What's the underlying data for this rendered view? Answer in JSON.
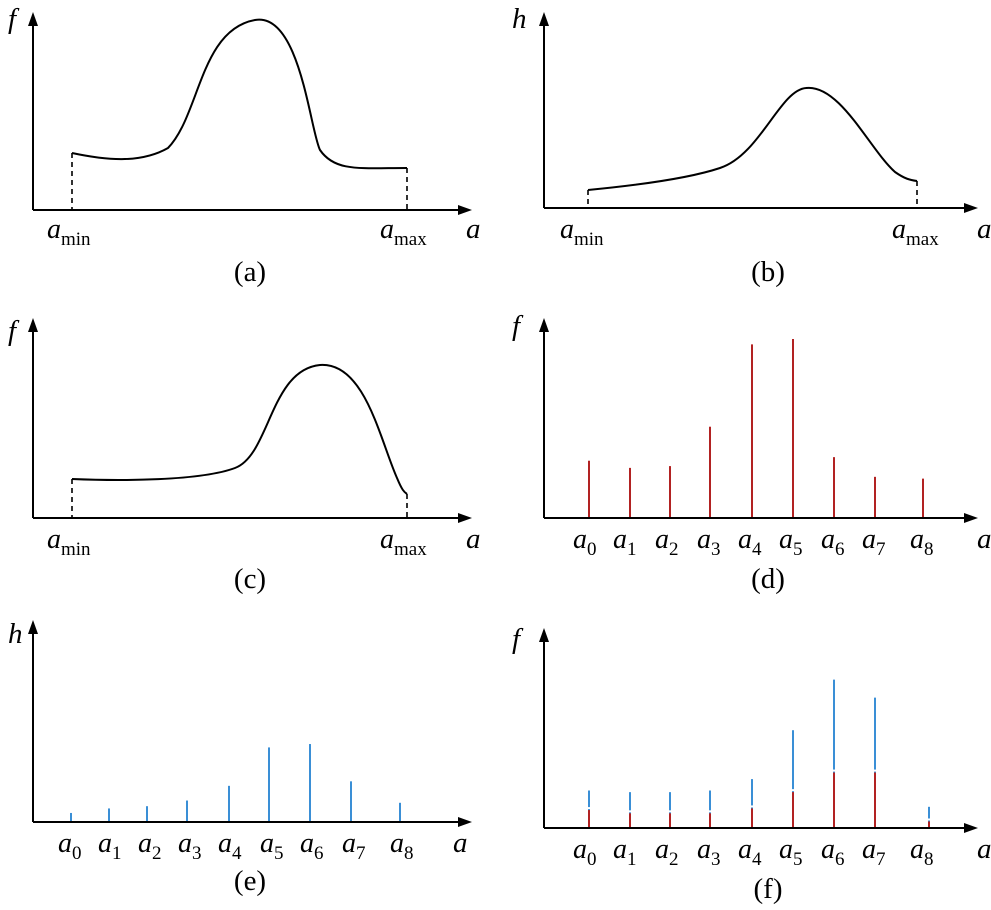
{
  "panels": [
    {
      "id": "a",
      "caption": "(a)",
      "kind": "curve",
      "y_label": "f",
      "x_label": "a",
      "x_ticks": [
        {
          "base": "a",
          "sub": "min"
        },
        {
          "base": "a",
          "sub": "max"
        }
      ]
    },
    {
      "id": "b",
      "caption": "(b)",
      "kind": "curve",
      "y_label": "h",
      "x_label": "a",
      "x_ticks": [
        {
          "base": "a",
          "sub": "min"
        },
        {
          "base": "a",
          "sub": "max"
        }
      ]
    },
    {
      "id": "c",
      "caption": "(c)",
      "kind": "curve",
      "y_label": "f",
      "x_label": "a",
      "x_ticks": [
        {
          "base": "a",
          "sub": "min"
        },
        {
          "base": "a",
          "sub": "max"
        }
      ]
    },
    {
      "id": "d",
      "caption": "(d)",
      "kind": "stems",
      "y_label": "f",
      "x_label": "a",
      "x_ticks": [
        {
          "base": "a",
          "sub": "0"
        },
        {
          "base": "a",
          "sub": "1"
        },
        {
          "base": "a",
          "sub": "2"
        },
        {
          "base": "a",
          "sub": "3"
        },
        {
          "base": "a",
          "sub": "4"
        },
        {
          "base": "a",
          "sub": "5"
        },
        {
          "base": "a",
          "sub": "6"
        },
        {
          "base": "a",
          "sub": "7"
        },
        {
          "base": "a",
          "sub": "8"
        }
      ]
    },
    {
      "id": "e",
      "caption": "(e)",
      "kind": "stems",
      "y_label": "h",
      "x_label": "a",
      "x_ticks": [
        {
          "base": "a",
          "sub": "0"
        },
        {
          "base": "a",
          "sub": "1"
        },
        {
          "base": "a",
          "sub": "2"
        },
        {
          "base": "a",
          "sub": "3"
        },
        {
          "base": "a",
          "sub": "4"
        },
        {
          "base": "a",
          "sub": "5"
        },
        {
          "base": "a",
          "sub": "6"
        },
        {
          "base": "a",
          "sub": "7"
        },
        {
          "base": "a",
          "sub": "8"
        }
      ]
    },
    {
      "id": "f",
      "caption": "(f)",
      "kind": "stems",
      "y_label": "f",
      "x_label": "a",
      "x_ticks": [
        {
          "base": "a",
          "sub": "0"
        },
        {
          "base": "a",
          "sub": "1"
        },
        {
          "base": "a",
          "sub": "2"
        },
        {
          "base": "a",
          "sub": "3"
        },
        {
          "base": "a",
          "sub": "4"
        },
        {
          "base": "a",
          "sub": "5"
        },
        {
          "base": "a",
          "sub": "6"
        },
        {
          "base": "a",
          "sub": "7"
        },
        {
          "base": "a",
          "sub": "8"
        }
      ]
    }
  ],
  "stem_values": {
    "d": {
      "color": "#b22222",
      "values": [
        0.32,
        0.28,
        0.29,
        0.51,
        0.97,
        1.0,
        0.34,
        0.23,
        0.22
      ]
    },
    "e": {
      "color": "#3a8fd6",
      "values": [
        0.08,
        0.12,
        0.14,
        0.19,
        0.32,
        0.66,
        0.69,
        0.36,
        0.17
      ]
    },
    "f": {
      "colors": {
        "red": "#b22222",
        "blue": "#3a8fd6"
      },
      "red_values": [
        0.11,
        0.09,
        0.09,
        0.09,
        0.12,
        0.22,
        0.34,
        0.34,
        0.04
      ],
      "blue_values": [
        0.23,
        0.22,
        0.22,
        0.23,
        0.3,
        0.6,
        0.91,
        0.8,
        0.13
      ]
    }
  }
}
